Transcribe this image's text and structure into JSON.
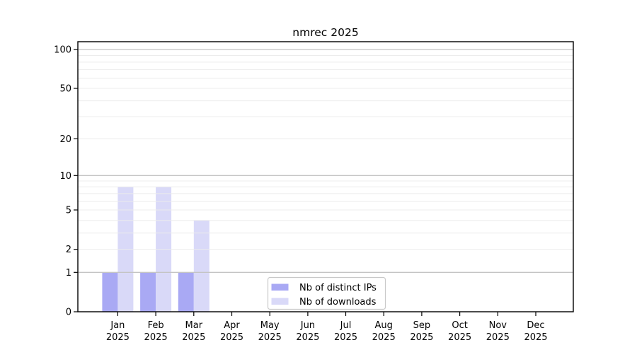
{
  "chart_data": {
    "type": "bar",
    "title": "nmrec 2025",
    "y_scale": "log10(1+x)",
    "grid": true,
    "legend_position": "bottom-center-inside",
    "categories": [
      {
        "month": "Jan",
        "year": "2025"
      },
      {
        "month": "Feb",
        "year": "2025"
      },
      {
        "month": "Mar",
        "year": "2025"
      },
      {
        "month": "Apr",
        "year": "2025"
      },
      {
        "month": "May",
        "year": "2025"
      },
      {
        "month": "Jun",
        "year": "2025"
      },
      {
        "month": "Jul",
        "year": "2025"
      },
      {
        "month": "Aug",
        "year": "2025"
      },
      {
        "month": "Sep",
        "year": "2025"
      },
      {
        "month": "Oct",
        "year": "2025"
      },
      {
        "month": "Nov",
        "year": "2025"
      },
      {
        "month": "Dec",
        "year": "2025"
      }
    ],
    "series": [
      {
        "name": "Nb of distinct IPs",
        "color": "#a9a9f4",
        "values": [
          1,
          1,
          1,
          0,
          0,
          0,
          0,
          0,
          0,
          0,
          0,
          0
        ]
      },
      {
        "name": "Nb of downloads",
        "color": "#d9d9f8",
        "values": [
          8,
          8,
          4,
          0,
          0,
          0,
          0,
          0,
          0,
          0,
          0,
          0
        ]
      }
    ],
    "y_ticks": [
      0,
      1,
      2,
      5,
      10,
      20,
      50,
      100
    ],
    "y_grid_minor": [
      2,
      3,
      4,
      5,
      6,
      7,
      8,
      9,
      20,
      30,
      40,
      50,
      60,
      70,
      80,
      90
    ],
    "y_grid_major": [
      1,
      10,
      100
    ],
    "ylim": [
      0,
      115
    ],
    "colors": {
      "background": "#ffffff",
      "axis": "#000000",
      "grid_minor": "#ececec",
      "grid_major": "#c4c4c4",
      "legend_border": "#c9c9c9",
      "legend_background": "#ffffff"
    }
  }
}
